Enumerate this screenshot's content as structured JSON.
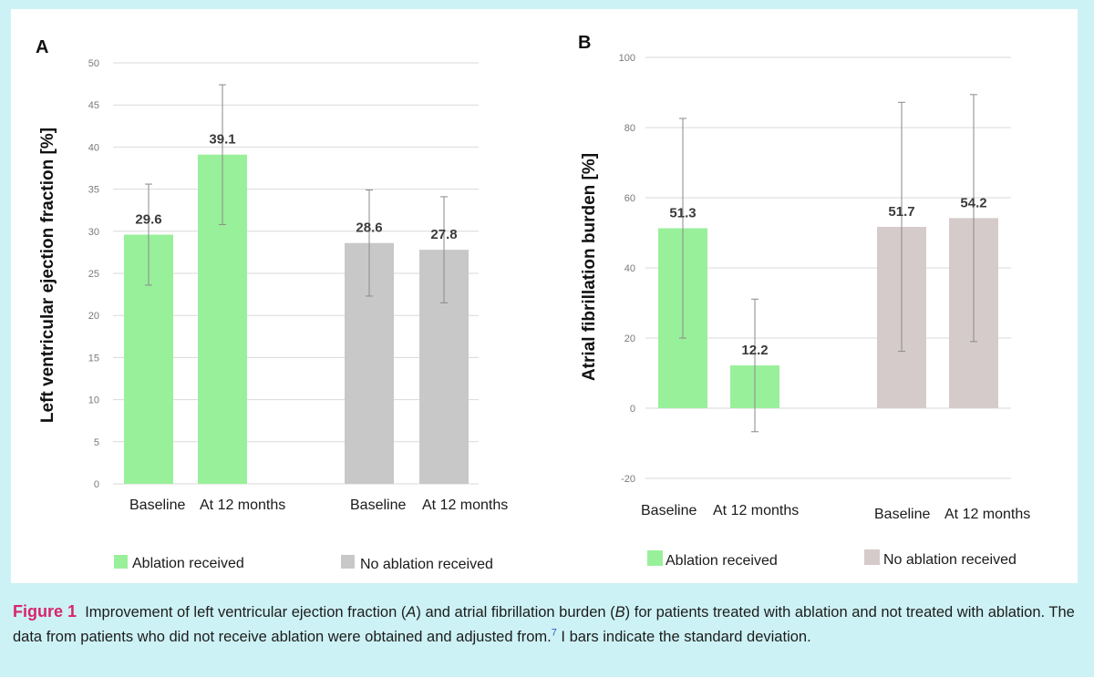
{
  "chart_data": [
    {
      "type": "bar",
      "panel": "A",
      "ylabel": "Left ventricular ejection fraction [%]",
      "ylim": [
        0,
        50
      ],
      "yticks": [
        0,
        5,
        10,
        15,
        20,
        25,
        30,
        35,
        40,
        45,
        50
      ],
      "grid": true,
      "groups": [
        {
          "name": "Ablation received",
          "categories": [
            "Baseline",
            "At 12 months"
          ],
          "values": [
            29.6,
            39.1
          ],
          "sd": [
            6.0,
            8.3
          ],
          "color": "#99f09a"
        },
        {
          "name": "No ablation received",
          "categories": [
            "Baseline",
            "At 12 months"
          ],
          "values": [
            28.6,
            27.8
          ],
          "sd": [
            6.3,
            6.3
          ],
          "color": "#c8c8c8"
        }
      ],
      "legend": [
        "Ablation received",
        "No ablation received"
      ]
    },
    {
      "type": "bar",
      "panel": "B",
      "ylabel": "Atrial fibrillation burden [%]",
      "ylim": [
        -20,
        100
      ],
      "yticks": [
        -20,
        0,
        20,
        40,
        60,
        80,
        100
      ],
      "grid": true,
      "groups": [
        {
          "name": "Ablation received",
          "categories": [
            "Baseline",
            "At 12 months"
          ],
          "values": [
            51.3,
            12.2
          ],
          "sd": [
            31.3,
            18.9
          ],
          "color": "#99f09a"
        },
        {
          "name": "No ablation received",
          "categories": [
            "Baseline",
            "At 12 months"
          ],
          "values": [
            51.7,
            54.2
          ],
          "sd": [
            35.5,
            35.2
          ],
          "color": "#d6cbcb"
        }
      ],
      "legend": [
        "Ablation received",
        "No ablation received"
      ]
    }
  ],
  "caption": {
    "figure_label": "Figure 1",
    "part1": "Improvement of left ventricular ejection fraction (",
    "a": "A",
    "part2": ") and atrial fibrillation burden (",
    "b": "B",
    "part3": ") for patients treated with ablation and not treated with ablation. The data from patients who did not receive ablation were obtained and adjusted from.",
    "ref": "7",
    "part4": " I bars indicate the standard deviation."
  }
}
